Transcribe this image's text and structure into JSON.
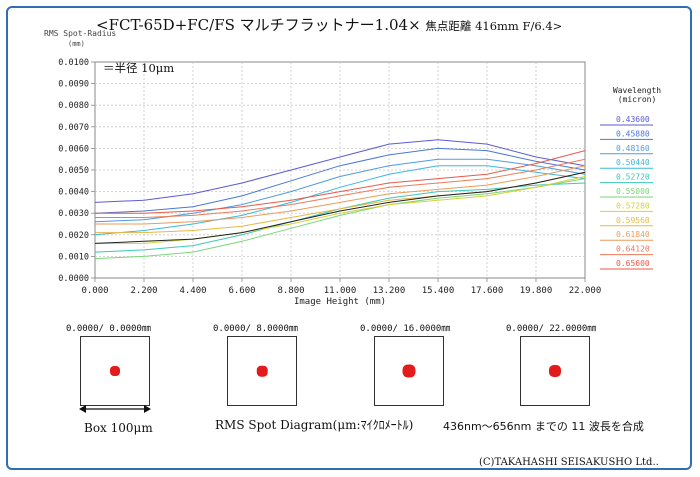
{
  "header": {
    "title_main": "<FCT-65D+FC/FS マルチフラットナー1.04×",
    "title_sub": "焦点距離 416mm F/6.4>"
  },
  "chart_data": {
    "type": "line",
    "ylabel": "RMS Spot-Radius",
    "yunit": "(mm)",
    "xlabel": "Image Height  (mm)",
    "annotation": "＝半径 10μm",
    "legend_title": "Wavelength",
    "legend_unit": "(micron)",
    "xlim": [
      0,
      22
    ],
    "ylim": [
      0,
      0.01
    ],
    "x_ticks": [
      "0.000",
      "2.200",
      "4.400",
      "6.600",
      "8.800",
      "11.000",
      "13.200",
      "15.400",
      "17.600",
      "19.800",
      "22.000"
    ],
    "y_ticks": [
      "0.0000",
      "0.0010",
      "0.0020",
      "0.0030",
      "0.0040",
      "0.0050",
      "0.0060",
      "0.0070",
      "0.0080",
      "0.0090",
      "0.0100"
    ],
    "x": [
      0,
      2.2,
      4.4,
      6.6,
      8.8,
      11,
      13.2,
      15.4,
      17.6,
      19.8,
      22
    ],
    "series": [
      {
        "name": "0.43600",
        "color": "#5b5bd6",
        "values": [
          0.0035,
          0.0036,
          0.0039,
          0.0044,
          0.005,
          0.0056,
          0.0062,
          0.0064,
          0.0062,
          0.0056,
          0.0052
        ]
      },
      {
        "name": "0.45880",
        "color": "#4a78d8",
        "values": [
          0.003,
          0.0031,
          0.0033,
          0.0038,
          0.0045,
          0.0052,
          0.0057,
          0.006,
          0.0059,
          0.0054,
          0.005
        ]
      },
      {
        "name": "0.48160",
        "color": "#4f9be0",
        "values": [
          0.0026,
          0.0027,
          0.003,
          0.0034,
          0.004,
          0.0047,
          0.0052,
          0.0055,
          0.0055,
          0.0052,
          0.0048
        ]
      },
      {
        "name": "0.50440",
        "color": "#3cb8e0",
        "values": [
          0.002,
          0.0022,
          0.0025,
          0.0029,
          0.0035,
          0.0042,
          0.0048,
          0.0052,
          0.0052,
          0.0049,
          0.0046
        ]
      },
      {
        "name": "0.52720",
        "color": "#3cc8b8",
        "values": [
          0.0012,
          0.0013,
          0.0015,
          0.002,
          0.0026,
          0.0032,
          0.0037,
          0.004,
          0.0041,
          0.0043,
          0.0044
        ]
      },
      {
        "name": "0.55000",
        "color": "#7ad67a",
        "values": [
          0.0009,
          0.001,
          0.0012,
          0.0017,
          0.0023,
          0.0029,
          0.0034,
          0.0037,
          0.0039,
          0.0042,
          0.0046
        ]
      },
      {
        "name": "0.57280",
        "color": "#d6d23a",
        "values": [
          0.0016,
          0.0016,
          0.0018,
          0.0021,
          0.0025,
          0.003,
          0.0034,
          0.0036,
          0.0038,
          0.0042,
          0.0047
        ]
      },
      {
        "name": "0.59560",
        "color": "#e8b844",
        "values": [
          0.0021,
          0.0021,
          0.0022,
          0.0024,
          0.0028,
          0.0032,
          0.0036,
          0.0038,
          0.004,
          0.0044,
          0.0049
        ]
      },
      {
        "name": "0.61840",
        "color": "#ee9a5a",
        "values": [
          0.0025,
          0.0025,
          0.0026,
          0.0028,
          0.0031,
          0.0035,
          0.0039,
          0.0041,
          0.0043,
          0.0047,
          0.0052
        ]
      },
      {
        "name": "0.64120",
        "color": "#ee7a5a",
        "values": [
          0.0028,
          0.0028,
          0.0029,
          0.0031,
          0.0034,
          0.0038,
          0.0042,
          0.0044,
          0.0046,
          0.005,
          0.0055
        ]
      },
      {
        "name": "0.65600",
        "color": "#e85a4a",
        "values": [
          0.003,
          0.003,
          0.0031,
          0.0033,
          0.0036,
          0.004,
          0.0044,
          0.0046,
          0.0048,
          0.0053,
          0.0059
        ]
      },
      {
        "name": "",
        "color": "#222222",
        "values": [
          0.0016,
          0.0017,
          0.0018,
          0.0021,
          0.0026,
          0.0031,
          0.0035,
          0.0038,
          0.004,
          0.0044,
          0.0049
        ]
      }
    ]
  },
  "spots": [
    {
      "coord": "0.0000/    0.0000㎜",
      "size": 1
    },
    {
      "coord": "0.0000/    8.0000㎜",
      "size": 1.05
    },
    {
      "coord": "0.0000/   16.0000㎜",
      "size": 1.3
    },
    {
      "coord": "0.0000/   22.0000㎜",
      "size": 1.2
    }
  ],
  "captions": {
    "box": "Box 100μm",
    "spot_diagram": "RMS Spot Diagram(μm:ﾏｲｸﾛﾒｰﾄﾙ)",
    "synthesis": "436nm～656nm までの 11 波長を合成",
    "copyright": "(C)TAKAHASHI SEISAKUSHO Ltd.."
  }
}
